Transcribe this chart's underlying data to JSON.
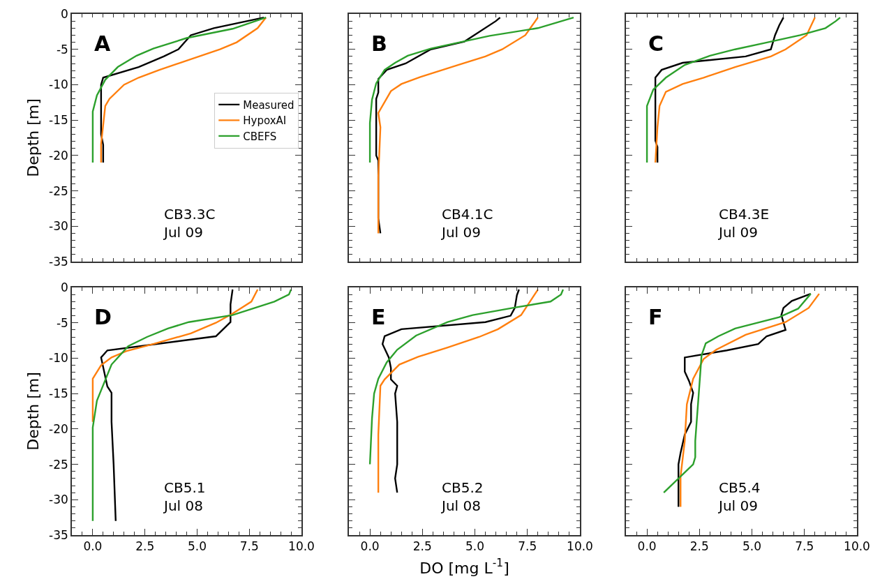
{
  "chart_data": [
    {
      "type": "line",
      "annotations": [
        "A",
        "CB3.3C\nJul 09"
      ],
      "ylabel": "Depth [m]",
      "legend": "right",
      "tick_labels": "y",
      "xlim": [
        -1,
        10
      ],
      "ylim": [
        -35,
        0
      ],
      "xticks": [
        {
          "value": 0,
          "label": null
        },
        {
          "value": 2.5,
          "label": null
        },
        {
          "value": 5,
          "label": null
        },
        {
          "value": 7.5,
          "label": null
        },
        {
          "value": 10,
          "label": null
        }
      ],
      "yticks": [
        0,
        -5,
        -10,
        -15,
        -20,
        -25,
        -30,
        -35
      ],
      "series": [
        {
          "name": "Measured",
          "color": "#000000",
          "x": [
            8.2,
            5.8,
            4.7,
            4.1,
            3.4,
            2.2,
            0.5,
            0.4,
            0.4,
            0.5,
            0.5
          ],
          "values": [
            -0.5,
            -2,
            -3,
            -5,
            -6,
            -7.5,
            -9,
            -10,
            -17,
            -18.5,
            -21
          ]
        },
        {
          "name": "HypoxAI",
          "color": "#ff7f0e",
          "x": [
            8.3,
            7.9,
            6.9,
            6.1,
            4.7,
            3.2,
            2.2,
            1.5,
            0.8,
            0.6,
            0.4,
            0.4
          ],
          "values": [
            -0.5,
            -2,
            -4,
            -5,
            -6.4,
            -7.9,
            -9,
            -10,
            -12,
            -13,
            -18.4,
            -21
          ]
        },
        {
          "name": "CBEFS",
          "color": "#2ca02c",
          "x": [
            8.3,
            6.7,
            4.5,
            2.9,
            2.1,
            1.2,
            0.6,
            0.2,
            0.0,
            0.0
          ],
          "values": [
            -0.5,
            -2.1,
            -3.4,
            -4.9,
            -5.9,
            -7.5,
            -9.3,
            -11.5,
            -13.8,
            -21
          ]
        }
      ]
    },
    {
      "type": "line",
      "annotations": [
        "B",
        "CB4.1C\nJul 09"
      ],
      "tick_labels": false,
      "xlim": [
        -1,
        10
      ],
      "ylim": [
        -35,
        0
      ],
      "xticks": [
        {
          "value": 0,
          "label": null
        },
        {
          "value": 2.5,
          "label": null
        },
        {
          "value": 5,
          "label": null
        },
        {
          "value": 7.5,
          "label": null
        },
        {
          "value": 10,
          "label": null
        }
      ],
      "yticks": [
        0,
        -5,
        -10,
        -15,
        -20,
        -25,
        -30,
        -35
      ],
      "series": [
        {
          "color": "#000000",
          "x": [
            6.2,
            6.0,
            4.5,
            2.9,
            1.7,
            0.8,
            0.4,
            0.4,
            0.3,
            0.3,
            0.4,
            0.4,
            0.5
          ],
          "values": [
            -0.5,
            -1,
            -3.9,
            -5,
            -7,
            -7.9,
            -9.2,
            -11.1,
            -12,
            -20,
            -20.7,
            -28.9,
            -31
          ]
        },
        {
          "color": "#ff7f0e",
          "x": [
            8.0,
            7.4,
            6.3,
            5.5,
            4.2,
            2.4,
            1.5,
            1.0,
            0.4,
            0.5,
            0.4,
            0.4
          ],
          "values": [
            -0.5,
            -3,
            -5,
            -6,
            -7.2,
            -8.9,
            -9.9,
            -10.9,
            -14,
            -16,
            -23,
            -31
          ]
        },
        {
          "color": "#2ca02c",
          "x": [
            9.7,
            8.0,
            5.7,
            2.9,
            1.8,
            1.2,
            0.7,
            0.3,
            0.1,
            0.0,
            0.0
          ],
          "values": [
            -0.5,
            -2,
            -3.1,
            -4.9,
            -5.9,
            -6.9,
            -7.9,
            -9.8,
            -12.1,
            -15.4,
            -21
          ]
        }
      ]
    },
    {
      "type": "line",
      "annotations": [
        "C",
        "CB4.3E\nJul 09"
      ],
      "tick_labels": false,
      "xlim": [
        -1,
        10
      ],
      "ylim": [
        -35,
        0
      ],
      "xticks": [
        {
          "value": 0,
          "label": null
        },
        {
          "value": 2.5,
          "label": null
        },
        {
          "value": 5,
          "label": null
        },
        {
          "value": 7.5,
          "label": null
        },
        {
          "value": 10,
          "label": null
        }
      ],
      "yticks": [
        0,
        -5,
        -10,
        -15,
        -20,
        -25,
        -30,
        -35
      ],
      "series": [
        {
          "color": "#000000",
          "x": [
            6.5,
            6.3,
            6.1,
            5.9,
            4.7,
            1.7,
            0.7,
            0.4,
            0.4,
            0.5,
            0.5
          ],
          "values": [
            -0.5,
            -1.6,
            -3,
            -5,
            -6,
            -6.9,
            -7.9,
            -9,
            -17.9,
            -18.8,
            -21
          ]
        },
        {
          "color": "#ff7f0e",
          "x": [
            8.0,
            7.6,
            6.6,
            5.9,
            4.2,
            2.7,
            1.7,
            0.9,
            0.6,
            0.5,
            0.4
          ],
          "values": [
            -0.5,
            -3,
            -5,
            -6,
            -7.5,
            -9,
            -9.9,
            -11,
            -13,
            -16,
            -21
          ]
        },
        {
          "color": "#2ca02c",
          "x": [
            9.2,
            9.0,
            8.5,
            7.3,
            5.6,
            4.2,
            3.0,
            1.8,
            0.9,
            0.3,
            0.0,
            0.0
          ],
          "values": [
            -0.5,
            -1,
            -2,
            -3,
            -4.1,
            -5,
            -5.9,
            -7.2,
            -9,
            -10.7,
            -13,
            -21
          ]
        }
      ]
    },
    {
      "type": "line",
      "annotations": [
        "D",
        "CB5.1\nJul 08"
      ],
      "ylabel": "Depth [m]",
      "xlim": [
        -1,
        10
      ],
      "ylim": [
        -35,
        0
      ],
      "xticks": [
        {
          "value": 0,
          "label": "0.0"
        },
        {
          "value": 2.5,
          "label": "2.5"
        },
        {
          "value": 5,
          "label": "5.0"
        },
        {
          "value": 7.5,
          "label": "7.5"
        },
        {
          "value": 10,
          "label": "10.0"
        }
      ],
      "yticks": [
        0,
        -5,
        -10,
        -15,
        -20,
        -25,
        -30,
        -35
      ],
      "series": [
        {
          "color": "#000000",
          "x": [
            6.7,
            6.6,
            6.6,
            5.9,
            0.7,
            0.4,
            0.7,
            0.9,
            0.9,
            0.9,
            1.0,
            1.1
          ],
          "values": [
            -0.3,
            -2.4,
            -4.9,
            -6.9,
            -8.9,
            -9.9,
            -14,
            -14.9,
            -17,
            -19,
            -25,
            -33
          ]
        },
        {
          "color": "#ff7f0e",
          "x": [
            7.9,
            7.6,
            6.7,
            5.9,
            4.7,
            2.9,
            1.6,
            0.9,
            0.4,
            0.0,
            0.0,
            null
          ],
          "values": [
            -0.3,
            -2,
            -3.7,
            -5,
            -6.5,
            -8,
            -9,
            -9.9,
            -11,
            -12.9,
            -19,
            null
          ]
        },
        {
          "color": "#2ca02c",
          "x": [
            9.5,
            9.4,
            8.7,
            6.7,
            4.6,
            3.6,
            2.6,
            1.7,
            0.9,
            0.2,
            0.0,
            0.0
          ],
          "values": [
            -0.3,
            -1,
            -2,
            -3.9,
            -4.9,
            -5.8,
            -7,
            -8.3,
            -10.9,
            -16,
            -19.8,
            -33
          ]
        }
      ]
    },
    {
      "type": "line",
      "annotations": [
        "E",
        "CB5.2\nJul 08"
      ],
      "xlabel": "DO [mg L$^{-1}$]",
      "tick_labels": "x",
      "xlim": [
        -1,
        10
      ],
      "ylim": [
        -35,
        0
      ],
      "xticks": [
        {
          "value": 0,
          "label": "0.0"
        },
        {
          "value": 2.5,
          "label": "2.5"
        },
        {
          "value": 5,
          "label": "5.0"
        },
        {
          "value": 7.5,
          "label": "7.5"
        },
        {
          "value": 10,
          "label": "10.0"
        }
      ],
      "yticks": [
        0,
        -5,
        -10,
        -15,
        -20,
        -25,
        -30,
        -35
      ],
      "series": [
        {
          "color": "#000000",
          "x": [
            7.1,
            7.0,
            6.9,
            6.7,
            5.5,
            1.5,
            0.7,
            0.6,
            0.9,
            1.0,
            1.0,
            1.3,
            1.2,
            1.3,
            1.3,
            1.2,
            1.3
          ],
          "values": [
            -0.3,
            -1.1,
            -2.9,
            -4,
            -4.9,
            -5.9,
            -6.9,
            -8,
            -9.9,
            -11.4,
            -13,
            -13.9,
            -15,
            -19,
            -25,
            -27,
            -29
          ]
        },
        {
          "color": "#ff7f0e",
          "x": [
            8.0,
            7.2,
            6.1,
            5.2,
            3.7,
            2.3,
            1.4,
            0.7,
            0.5,
            0.4,
            0.4
          ],
          "values": [
            -0.3,
            -3.9,
            -5.9,
            -7,
            -8.5,
            -9.8,
            -10.9,
            -13,
            -13.9,
            -20.8,
            -29
          ]
        },
        {
          "color": "#2ca02c",
          "x": [
            9.2,
            9.1,
            8.6,
            6.8,
            4.9,
            3.7,
            2.2,
            1.3,
            0.8,
            0.4,
            0.2,
            0.1,
            0.0
          ],
          "values": [
            -0.3,
            -1,
            -2,
            -2.9,
            -3.9,
            -4.9,
            -6.8,
            -8.8,
            -10.6,
            -12.9,
            -15,
            -18.5,
            -25
          ]
        }
      ]
    },
    {
      "type": "line",
      "annotations": [
        "F",
        "CB5.4\nJul 09"
      ],
      "tick_labels": "x",
      "xlim": [
        -1,
        10
      ],
      "ylim": [
        -35,
        0
      ],
      "xticks": [
        {
          "value": 0,
          "label": "0.0"
        },
        {
          "value": 2.5,
          "label": "2.5"
        },
        {
          "value": 5,
          "label": "5.0"
        },
        {
          "value": 7.5,
          "label": "7.5"
        },
        {
          "value": 10,
          "label": "10.0"
        }
      ],
      "yticks": [
        0,
        -5,
        -10,
        -15,
        -20,
        -25,
        -30,
        -35
      ],
      "series": [
        {
          "color": "#000000",
          "x": [
            7.8,
            6.9,
            6.5,
            6.4,
            6.6,
            5.7,
            5.3,
            3.8,
            1.8,
            1.8,
            2.0,
            2.2,
            2.1,
            2.1,
            1.8,
            1.6,
            1.5,
            1.5
          ],
          "values": [
            -0.9,
            -1.9,
            -2.9,
            -3.9,
            -6,
            -6.9,
            -8,
            -8.9,
            -9.9,
            -11.9,
            -13.2,
            -14.9,
            -16.5,
            -19,
            -20.8,
            -23.4,
            -25,
            -31
          ]
        },
        {
          "color": "#ff7f0e",
          "x": [
            8.2,
            7.7,
            6.6,
            4.7,
            3.3,
            2.7,
            2.2,
            1.9,
            1.8,
            1.6,
            1.6
          ],
          "values": [
            -0.9,
            -2.9,
            -4.9,
            -6.7,
            -8.8,
            -10.1,
            -12.9,
            -16.5,
            -21.7,
            -26.7,
            -31
          ]
        },
        {
          "color": "#2ca02c",
          "x": [
            7.8,
            7.2,
            6.3,
            4.2,
            3.4,
            2.8,
            2.6,
            2.5,
            2.3,
            2.3,
            2.2,
            0.8
          ],
          "values": [
            -0.9,
            -3,
            -4.2,
            -5.8,
            -6.9,
            -7.9,
            -9.6,
            -13.7,
            -21.7,
            -24,
            -25,
            -29
          ]
        }
      ]
    }
  ]
}
